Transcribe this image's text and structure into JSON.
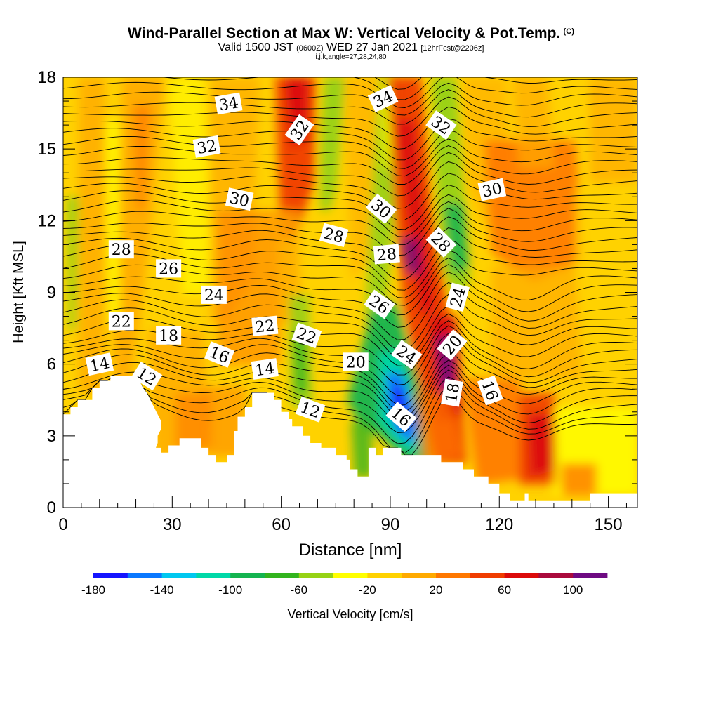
{
  "header": {
    "title": "Wind-Parallel Section at Max W: Vertical Velocity & Pot.Temp.",
    "copyright": "(C)",
    "valid_prefix": "Valid 1500 JST",
    "valid_utc": "(0600Z)",
    "valid_date": "WED 27 Jan 2021",
    "forecast": "[12hrFcst@2206z]",
    "ijk": "i,j,k,angle=27,28,24,80"
  },
  "chart_data": {
    "type": "heatmap",
    "title": "Wind-Parallel Section at Max W: Vertical Velocity & Pot.Temp.",
    "xlabel": "Distance [nm]",
    "ylabel": "Height [Kft MSL]",
    "xlim": [
      0,
      158
    ],
    "ylim": [
      0,
      18
    ],
    "x_ticks": [
      "0",
      "30",
      "60",
      "90",
      "120",
      "150"
    ],
    "y_ticks": [
      "0",
      "3",
      "6",
      "9",
      "12",
      "15",
      "18"
    ],
    "colorbar": {
      "label": "Vertical Velocity [cm/s]",
      "tick_labels": [
        "-180",
        "-140",
        "-100",
        "-60",
        "-20",
        "20",
        "60",
        "100"
      ],
      "levels": [
        -180,
        -160,
        -140,
        -120,
        -100,
        -80,
        -60,
        -40,
        -20,
        0,
        20,
        40,
        60,
        80,
        100,
        120
      ],
      "colors": [
        "#1414ff",
        "#0a78ff",
        "#00c8f0",
        "#00d8a8",
        "#14b450",
        "#32b41e",
        "#96d214",
        "#ffff00",
        "#ffd200",
        "#ffaa00",
        "#ff7800",
        "#f03c00",
        "#dc0a0a",
        "#aa0a3c",
        "#6e0a82"
      ]
    },
    "terrain": [
      [
        0,
        3.9
      ],
      [
        2,
        3.9
      ],
      [
        2,
        4.2
      ],
      [
        4,
        4.2
      ],
      [
        4,
        4.5
      ],
      [
        8,
        4.5
      ],
      [
        8,
        5.0
      ],
      [
        10,
        5.0
      ],
      [
        10,
        5.3
      ],
      [
        13,
        5.3
      ],
      [
        13,
        5.5
      ],
      [
        20,
        5.5
      ],
      [
        21,
        5.3
      ],
      [
        22,
        5.0
      ],
      [
        23,
        4.8
      ],
      [
        24,
        4.5
      ],
      [
        25,
        4.2
      ],
      [
        26,
        3.9
      ],
      [
        27,
        3.6
      ],
      [
        27,
        3.3
      ],
      [
        26,
        3.0
      ],
      [
        26,
        2.7
      ],
      [
        25.5,
        2.5
      ],
      [
        27,
        2.5
      ],
      [
        27,
        2.3
      ],
      [
        29,
        2.3
      ],
      [
        29,
        2.6
      ],
      [
        32,
        2.6
      ],
      [
        32,
        2.9
      ],
      [
        38,
        2.9
      ],
      [
        38,
        2.5
      ],
      [
        40,
        2.5
      ],
      [
        40,
        2.2
      ],
      [
        42,
        2.2
      ],
      [
        42,
        1.9
      ],
      [
        45,
        1.9
      ],
      [
        45,
        2.2
      ],
      [
        47,
        2.2
      ],
      [
        47,
        3.2
      ],
      [
        48,
        3.2
      ],
      [
        48,
        3.8
      ],
      [
        50,
        3.8
      ],
      [
        50,
        4.2
      ],
      [
        52,
        4.2
      ],
      [
        52,
        4.8
      ],
      [
        58,
        4.8
      ],
      [
        58,
        4.5
      ],
      [
        60,
        4.5
      ],
      [
        60,
        4.0
      ],
      [
        62,
        4.0
      ],
      [
        62,
        3.7
      ],
      [
        63,
        3.7
      ],
      [
        63,
        3.4
      ],
      [
        66,
        3.4
      ],
      [
        66,
        3.0
      ],
      [
        68,
        3.0
      ],
      [
        68,
        2.7
      ],
      [
        71,
        2.7
      ],
      [
        71,
        2.5
      ],
      [
        75,
        2.5
      ],
      [
        75,
        2.2
      ],
      [
        78,
        2.2
      ],
      [
        78,
        2.0
      ],
      [
        79,
        2.0
      ],
      [
        79,
        1.6
      ],
      [
        81,
        1.6
      ],
      [
        81,
        1.3
      ],
      [
        84,
        1.3
      ],
      [
        84,
        2.5
      ],
      [
        86,
        2.5
      ],
      [
        86,
        2.2
      ],
      [
        88,
        2.2
      ],
      [
        88,
        2.5
      ],
      [
        93,
        2.5
      ],
      [
        93,
        2.2
      ],
      [
        104,
        2.2
      ],
      [
        104,
        1.9
      ],
      [
        110,
        1.9
      ],
      [
        110,
        1.6
      ],
      [
        113,
        1.6
      ],
      [
        113,
        1.3
      ],
      [
        117,
        1.3
      ],
      [
        117,
        1.0
      ],
      [
        120,
        1.0
      ],
      [
        120,
        0.6
      ],
      [
        123,
        0.6
      ],
      [
        123,
        0.3
      ],
      [
        127,
        0.3
      ],
      [
        127,
        0.6
      ],
      [
        128,
        0.6
      ],
      [
        128,
        0.3
      ],
      [
        145,
        0.3
      ],
      [
        145,
        0.6
      ],
      [
        158,
        0.6
      ]
    ],
    "contour_labels": [
      {
        "text": "34",
        "x": 45.5,
        "y": 16.9,
        "angle": -10
      },
      {
        "text": "32",
        "x": 39.5,
        "y": 15.1,
        "angle": -10
      },
      {
        "text": "30",
        "x": 48.5,
        "y": 12.9,
        "angle": 12
      },
      {
        "text": "28",
        "x": 16,
        "y": 10.8,
        "angle": 0
      },
      {
        "text": "26",
        "x": 29,
        "y": 10.0,
        "angle": 0
      },
      {
        "text": "24",
        "x": 41.5,
        "y": 8.9,
        "angle": 0
      },
      {
        "text": "22",
        "x": 16,
        "y": 7.8,
        "angle": 0
      },
      {
        "text": "18",
        "x": 29,
        "y": 7.2,
        "angle": 0
      },
      {
        "text": "16",
        "x": 43,
        "y": 6.4,
        "angle": 22
      },
      {
        "text": "14",
        "x": 10,
        "y": 6.0,
        "angle": -12
      },
      {
        "text": "12",
        "x": 23,
        "y": 5.5,
        "angle": 32
      },
      {
        "text": "14",
        "x": 55.5,
        "y": 5.8,
        "angle": -8
      },
      {
        "text": "22",
        "x": 55.5,
        "y": 7.6,
        "angle": -5
      },
      {
        "text": "22",
        "x": 67,
        "y": 7.2,
        "angle": 20
      },
      {
        "text": "28",
        "x": 74.5,
        "y": 11.4,
        "angle": 15
      },
      {
        "text": "32",
        "x": 65,
        "y": 15.8,
        "angle": -55
      },
      {
        "text": "34",
        "x": 88,
        "y": 17.1,
        "angle": -25
      },
      {
        "text": "32",
        "x": 104,
        "y": 16.0,
        "angle": 35
      },
      {
        "text": "30",
        "x": 87.5,
        "y": 12.5,
        "angle": 40
      },
      {
        "text": "28",
        "x": 89,
        "y": 10.6,
        "angle": -5
      },
      {
        "text": "26",
        "x": 87,
        "y": 8.5,
        "angle": 35
      },
      {
        "text": "24",
        "x": 94.5,
        "y": 6.4,
        "angle": 35
      },
      {
        "text": "20",
        "x": 80.5,
        "y": 6.1,
        "angle": 0
      },
      {
        "text": "16",
        "x": 93,
        "y": 3.8,
        "angle": 40
      },
      {
        "text": "28",
        "x": 104,
        "y": 11.1,
        "angle": 45
      },
      {
        "text": "24",
        "x": 108.5,
        "y": 8.8,
        "angle": -75
      },
      {
        "text": "20",
        "x": 107,
        "y": 6.8,
        "angle": -50
      },
      {
        "text": "18",
        "x": 107,
        "y": 4.8,
        "angle": -80
      },
      {
        "text": "16",
        "x": 117.5,
        "y": 4.9,
        "angle": 70
      },
      {
        "text": "12",
        "x": 68,
        "y": 4.1,
        "angle": 20
      },
      {
        "text": "30",
        "x": 118,
        "y": 13.3,
        "angle": -12
      }
    ]
  }
}
